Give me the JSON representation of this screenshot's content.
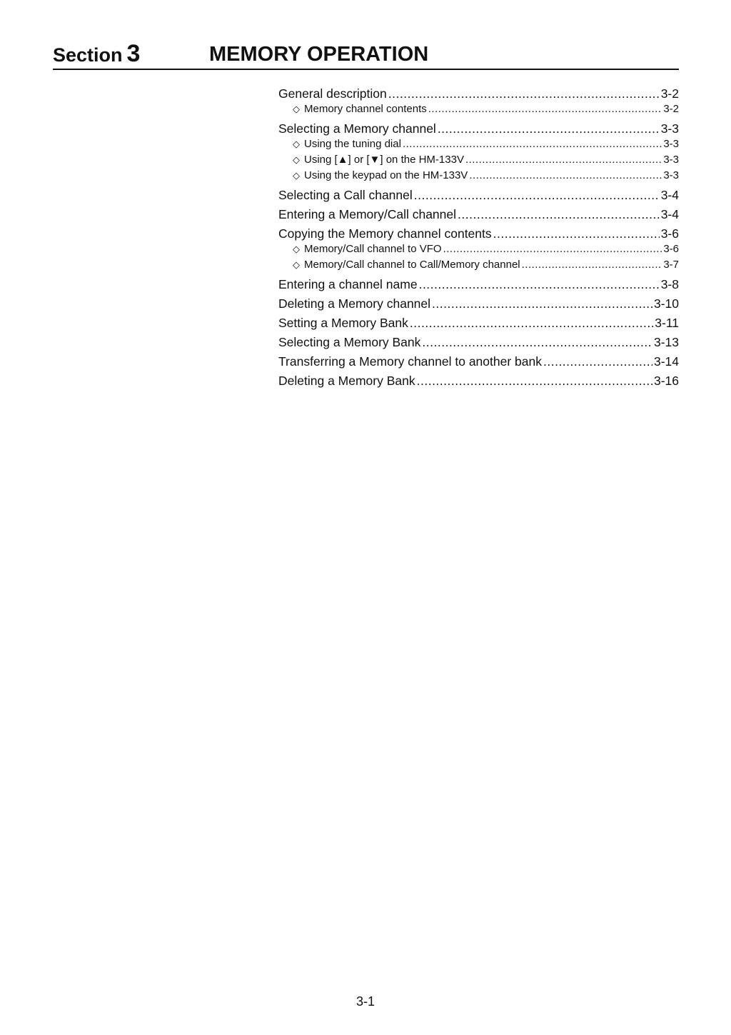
{
  "header": {
    "section_word": "Section",
    "section_number": "3",
    "title": "MEMORY OPERATION"
  },
  "toc": [
    {
      "level": "main",
      "label": "General description",
      "page": "3-2"
    },
    {
      "level": "sub",
      "label": "Memory channel contents",
      "page": "3-2"
    },
    {
      "level": "main",
      "label": "Selecting a Memory channel",
      "page": "3-3"
    },
    {
      "level": "sub",
      "label": "Using the tuning dial",
      "page": "3-3"
    },
    {
      "level": "sub",
      "label": "Using [▲] or [▼] on the HM-133V",
      "page": "3-3"
    },
    {
      "level": "sub",
      "label": "Using the keypad on the HM-133V",
      "page": "3-3"
    },
    {
      "level": "main",
      "label": "Selecting a Call channel",
      "page": "3-4"
    },
    {
      "level": "main",
      "label": "Entering a Memory/Call channel",
      "page": "3-4"
    },
    {
      "level": "main",
      "label": "Copying the Memory channel contents",
      "page": "3-6"
    },
    {
      "level": "sub",
      "label": "Memory/Call channel to VFO",
      "page": "3-6"
    },
    {
      "level": "sub",
      "label": "Memory/Call channel to Call/Memory channel",
      "page": "3-7"
    },
    {
      "level": "main",
      "label": "Entering a channel name",
      "page": "3-8"
    },
    {
      "level": "main",
      "label": "Deleting a Memory channel",
      "page": "3-10"
    },
    {
      "level": "main",
      "label": "Setting a Memory Bank",
      "page": "3-11"
    },
    {
      "level": "main",
      "label": "Selecting a Memory Bank",
      "page": "3-13"
    },
    {
      "level": "main",
      "label": "Transferring a Memory channel to another bank",
      "page": "3-14"
    },
    {
      "level": "main",
      "label": "Deleting a Memory Bank",
      "page": "3-16"
    }
  ],
  "sub_marker": "◇",
  "page_number": "3-1"
}
